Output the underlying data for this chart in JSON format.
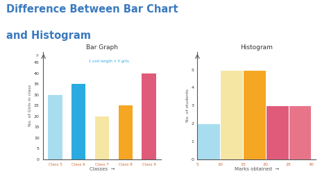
{
  "title_line1": "Difference Between Bar Chart",
  "title_line2": "and Histogram",
  "title_color": "#3a7abf",
  "title_fontsize": 10.5,
  "bg_color": "#ffffff",
  "bar_graph": {
    "title": "Bar Graph",
    "categories": [
      "Class 5",
      "Class 6",
      "Class 7",
      "Class 8",
      "Class 9"
    ],
    "values": [
      30,
      35,
      20,
      25,
      40
    ],
    "colors": [
      "#a8ddf0",
      "#29abe2",
      "#f5e6a3",
      "#f5a623",
      "#e05a7a"
    ],
    "xlabel": "Classes",
    "ylabel": "No. of Girls in class",
    "ylim": [
      0,
      50
    ],
    "yticks": [
      0,
      5,
      10,
      15,
      20,
      25,
      30,
      35,
      40,
      45
    ],
    "annotation": "1 unit length = 5 girls",
    "annotation_color": "#29abe2",
    "xticklabel_color": "#cc6633"
  },
  "histogram": {
    "title": "Histogram",
    "bin_edges": [
      5,
      10,
      15,
      20,
      25,
      30
    ],
    "values": [
      2,
      5,
      5,
      3,
      3
    ],
    "colors": [
      "#a8ddf0",
      "#f5e6a3",
      "#f5a623",
      "#e05a7a",
      "#e8748a"
    ],
    "xlabel": "Marks obtained",
    "ylabel": "No. of students",
    "ylim": [
      0,
      6
    ],
    "yticks": [
      0,
      1,
      2,
      3,
      4,
      5
    ],
    "xticklabel_color": "#cc6633"
  }
}
